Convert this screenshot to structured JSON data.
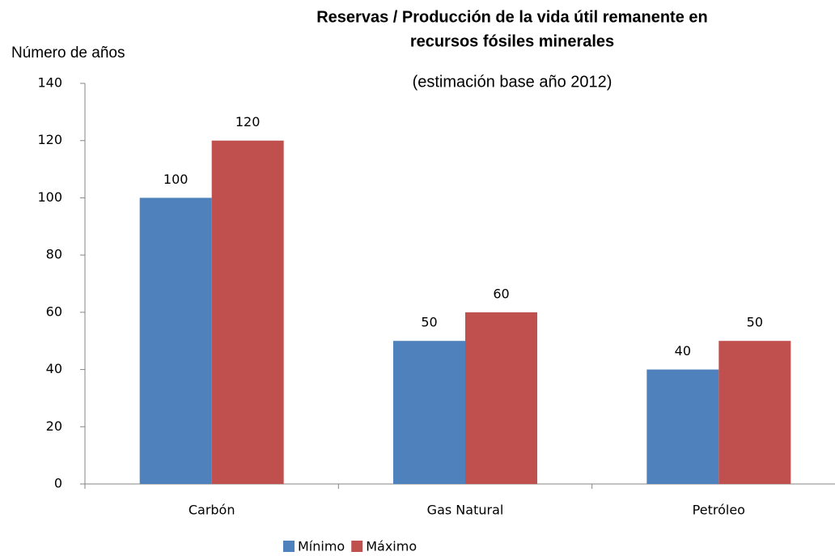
{
  "chart_data": {
    "type": "bar",
    "title": [
      "Reservas / Producción de la vida útil remanente en",
      "recursos fósiles minerales"
    ],
    "subtitle": "(estimación base año 2012)",
    "y_label": "Número de años",
    "categories": [
      "Carbón",
      "Gas Natural",
      "Petróleo"
    ],
    "series": [
      {
        "name": "Mínimo",
        "color": "#4f81bd",
        "values": [
          100,
          50,
          40
        ]
      },
      {
        "name": "Máximo",
        "color": "#c0504d",
        "values": [
          120,
          60,
          50
        ]
      }
    ],
    "ylim": [
      0,
      140
    ],
    "yticks": [
      0,
      20,
      40,
      60,
      80,
      100,
      120,
      140
    ],
    "grid": false,
    "legend": "bottom"
  }
}
